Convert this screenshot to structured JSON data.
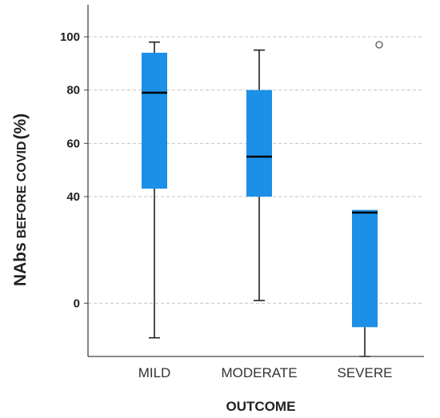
{
  "chart_data": {
    "type": "boxplot",
    "xlabel": "OUTCOME",
    "ylabel": {
      "prefix": "NAbs",
      "middle": "BEFORE COVID",
      "suffix": "(%)"
    },
    "ylim": [
      -20,
      112
    ],
    "y_ticks": [
      0,
      40,
      60,
      80,
      100
    ],
    "grid": true,
    "categories": [
      "MILD",
      "MODERATE",
      "SEVERE"
    ],
    "boxes": [
      {
        "category": "MILD",
        "whisker_low": -13,
        "q1": 43,
        "median": 79,
        "q3": 94,
        "whisker_high": 98,
        "outliers": []
      },
      {
        "category": "MODERATE",
        "whisker_low": 1,
        "q1": 40,
        "median": 55,
        "q3": 80,
        "whisker_high": 95,
        "outliers": []
      },
      {
        "category": "SEVERE",
        "whisker_low": -20,
        "q1": -9,
        "median": 34,
        "q3": 35,
        "whisker_high": 35,
        "outliers": [
          97
        ]
      }
    ],
    "colors": {
      "box_fill": "#1c8fe6",
      "median": "#000000",
      "whisker": "#222222",
      "grid": "#c4c4c4",
      "axis": "#444444"
    }
  }
}
